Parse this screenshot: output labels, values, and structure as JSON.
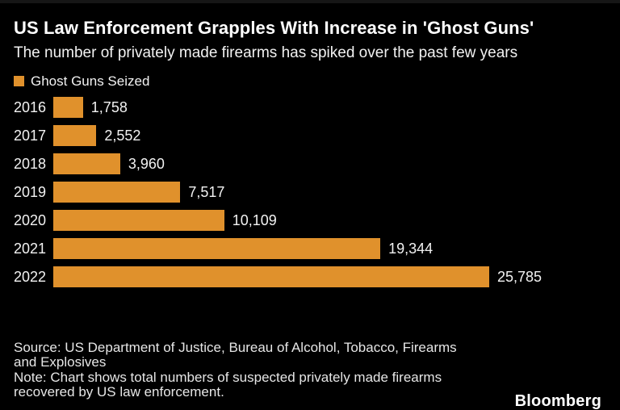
{
  "header": {
    "title": "US Law Enforcement Grapples With Increase in 'Ghost Guns'",
    "subtitle": "The number of privately made firearms has spiked over the past few years"
  },
  "legend": {
    "label": "Ghost Guns Seized",
    "swatch_color": "#e0912c"
  },
  "chart_data": {
    "type": "bar",
    "orientation": "horizontal",
    "title": "US Law Enforcement Grapples With Increase in 'Ghost Guns'",
    "subtitle": "The number of privately made firearms has spiked over the past few years",
    "series_name": "Ghost Guns Seized",
    "categories": [
      "2016",
      "2017",
      "2018",
      "2019",
      "2020",
      "2021",
      "2022"
    ],
    "values": [
      1758,
      2552,
      3960,
      7517,
      10109,
      19344,
      25785
    ],
    "value_labels": [
      "1,758",
      "2,552",
      "3,960",
      "7,517",
      "10,109",
      "19,344",
      "25,785"
    ],
    "bar_color": "#e0912c",
    "xlim": [
      0,
      25785
    ],
    "grid": false,
    "legend_position": "top-left",
    "value_labels_position": "right-of-bar"
  },
  "footer": {
    "source_lines": [
      "Source: US Department of Justice, Bureau of Alcohol, Tobacco, Firearms",
      "and Explosives"
    ],
    "note_lines": [
      "Note: Chart shows total numbers of suspected privately made firearms",
      "recovered by US law enforcement."
    ],
    "logo": "Bloomberg"
  },
  "colors": {
    "background": "#000000",
    "title_text": "#ffffff",
    "body_text": "#f2f2f2",
    "footer_text": "#e6e6e6",
    "accent_orange": "#e0912c"
  }
}
